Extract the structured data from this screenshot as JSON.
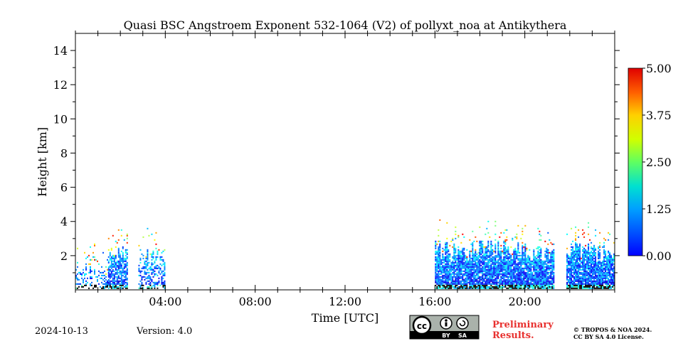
{
  "chart_data": {
    "type": "heatmap",
    "title": "Quasi BSC Angstroem Exponent 532-1064 (V2) of pollyxt_noa at Antikythera",
    "xlabel": "Time [UTC]",
    "ylabel": "Height [km]",
    "xlim_hours": [
      0,
      24
    ],
    "ylim_km": [
      0,
      15
    ],
    "x_ticks": [
      {
        "hour": 4,
        "label": "04:00"
      },
      {
        "hour": 8,
        "label": "08:00"
      },
      {
        "hour": 12,
        "label": "12:00"
      },
      {
        "hour": 16,
        "label": "16:00"
      },
      {
        "hour": 20,
        "label": "20:00"
      }
    ],
    "y_ticks": [
      {
        "km": 2,
        "label": "2"
      },
      {
        "km": 4,
        "label": "4"
      },
      {
        "km": 6,
        "label": "6"
      },
      {
        "km": 8,
        "label": "8"
      },
      {
        "km": 10,
        "label": "10"
      },
      {
        "km": 12,
        "label": "12"
      },
      {
        "km": 14,
        "label": "14"
      }
    ],
    "colorbar": {
      "min": 0.0,
      "max": 5.0,
      "ticks": [
        {
          "value": 0.0,
          "label": "0.00"
        },
        {
          "value": 1.25,
          "label": "1.25"
        },
        {
          "value": 2.5,
          "label": "2.50"
        },
        {
          "value": 3.75,
          "label": "3.75"
        },
        {
          "value": 5.0,
          "label": "5.00"
        }
      ],
      "colormap": "jet"
    },
    "data_segments": [
      {
        "start_h": 0.0,
        "end_h": 1.4,
        "top_km": 1.5,
        "density": 0.35
      },
      {
        "start_h": 1.45,
        "end_h": 2.3,
        "top_km": 2.6,
        "density": 0.75
      },
      {
        "start_h": 2.8,
        "end_h": 4.0,
        "top_km": 2.4,
        "density": 0.5
      },
      {
        "start_h": 16.0,
        "end_h": 21.3,
        "top_km": 2.9,
        "density": 0.9
      },
      {
        "start_h": 21.85,
        "end_h": 24.0,
        "top_km": 2.8,
        "density": 0.9
      }
    ]
  },
  "footer": {
    "date": "2024-10-13",
    "version": "Version: 4.0",
    "preliminary_line1": "Preliminary",
    "preliminary_line2": "Results.",
    "copyright_line1": "© TROPOS & NOA 2024.",
    "copyright_line2": "CC BY SA 4.0 License.",
    "license_badge": {
      "cc": "cc",
      "by": "BY",
      "sa": "SA"
    }
  }
}
